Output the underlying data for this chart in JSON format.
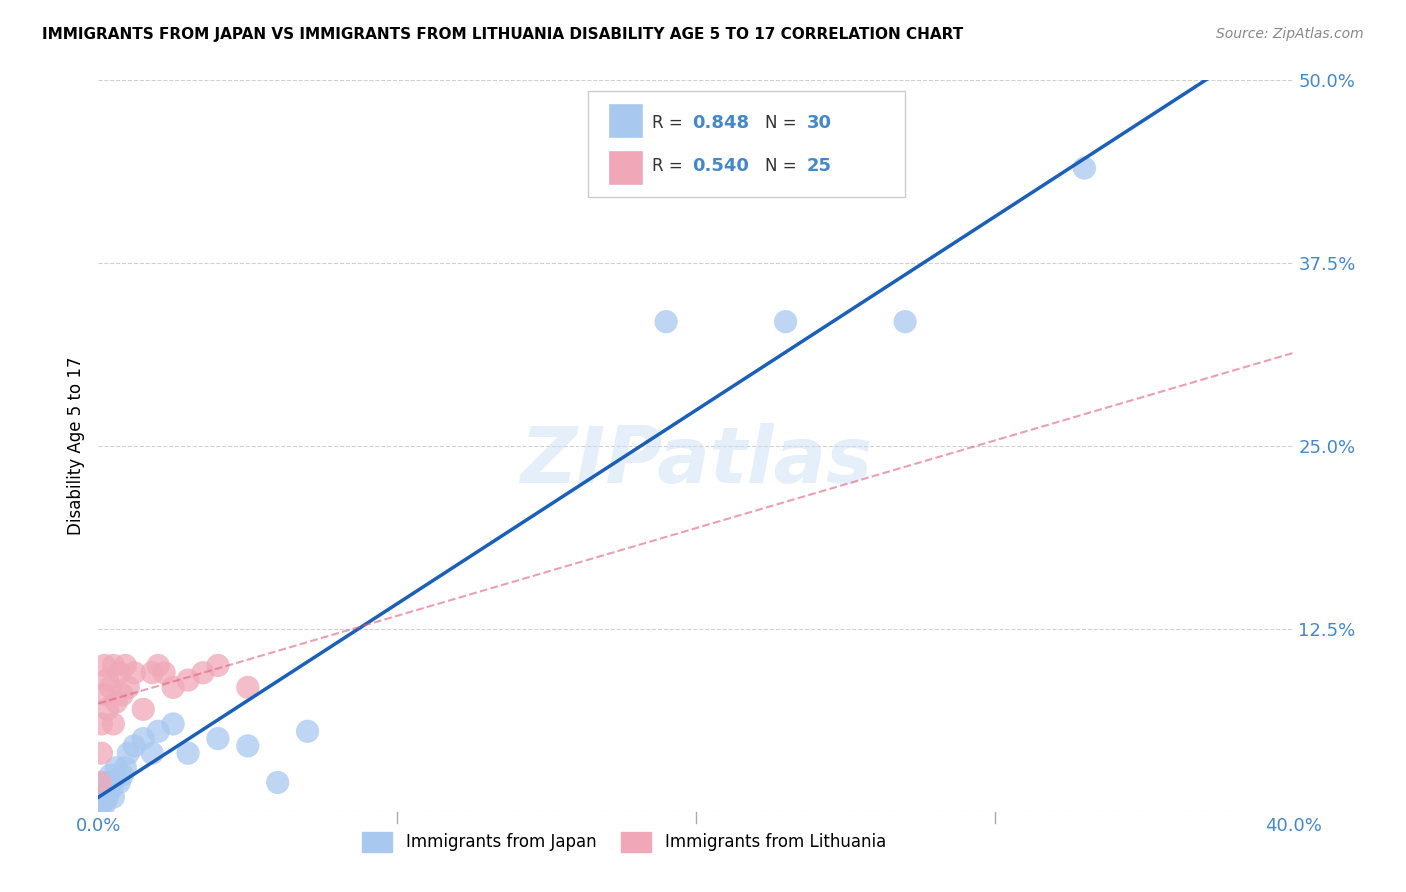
{
  "title": "IMMIGRANTS FROM JAPAN VS IMMIGRANTS FROM LITHUANIA DISABILITY AGE 5 TO 17 CORRELATION CHART",
  "source": "Source: ZipAtlas.com",
  "ylabel": "Disability Age 5 to 17",
  "xlim": [
    0,
    0.4
  ],
  "ylim": [
    0,
    0.5
  ],
  "xticks": [
    0.0,
    0.1,
    0.2,
    0.3,
    0.4
  ],
  "xtick_labels": [
    "0.0%",
    "",
    "",
    "",
    "40.0%"
  ],
  "yticks": [
    0.0,
    0.125,
    0.25,
    0.375,
    0.5
  ],
  "ytick_labels": [
    "",
    "12.5%",
    "25.0%",
    "37.5%",
    "50.0%"
  ],
  "watermark": "ZIPatlas",
  "japan_R": 0.848,
  "japan_N": 30,
  "lithuania_R": 0.54,
  "lithuania_N": 25,
  "japan_color": "#a8c8f0",
  "lithuania_color": "#f0a8b8",
  "japan_line_color": "#1a5fba",
  "lithuania_line_color": "#e06080",
  "grid_color": "#d0d0d0",
  "axis_color": "#4488cc",
  "japan_x": [
    0.0005,
    0.001,
    0.001,
    0.002,
    0.002,
    0.002,
    0.003,
    0.003,
    0.004,
    0.004,
    0.005,
    0.005,
    0.006,
    0.007,
    0.008,
    0.009,
    0.01,
    0.012,
    0.015,
    0.018,
    0.02,
    0.025,
    0.03,
    0.04,
    0.05,
    0.06,
    0.07,
    0.19,
    0.23,
    0.27
  ],
  "japan_y": [
    0.002,
    0.005,
    0.01,
    0.005,
    0.01,
    0.02,
    0.01,
    0.02,
    0.015,
    0.025,
    0.02,
    0.01,
    0.03,
    0.02,
    0.025,
    0.03,
    0.04,
    0.045,
    0.05,
    0.04,
    0.055,
    0.06,
    0.04,
    0.05,
    0.045,
    0.02,
    0.055,
    0.335,
    0.335,
    0.335
  ],
  "japan_x_extra": [
    0.33
  ],
  "japan_y_extra": [
    0.44
  ],
  "lithuania_x": [
    0.0005,
    0.001,
    0.001,
    0.002,
    0.002,
    0.003,
    0.003,
    0.004,
    0.005,
    0.005,
    0.006,
    0.007,
    0.008,
    0.009,
    0.01,
    0.012,
    0.015,
    0.018,
    0.02,
    0.022,
    0.025,
    0.03,
    0.035,
    0.04,
    0.05
  ],
  "lithuania_y": [
    0.02,
    0.04,
    0.06,
    0.08,
    0.1,
    0.07,
    0.09,
    0.085,
    0.06,
    0.1,
    0.075,
    0.095,
    0.08,
    0.1,
    0.085,
    0.095,
    0.07,
    0.095,
    0.1,
    0.095,
    0.085,
    0.09,
    0.095,
    0.1,
    0.085
  ]
}
